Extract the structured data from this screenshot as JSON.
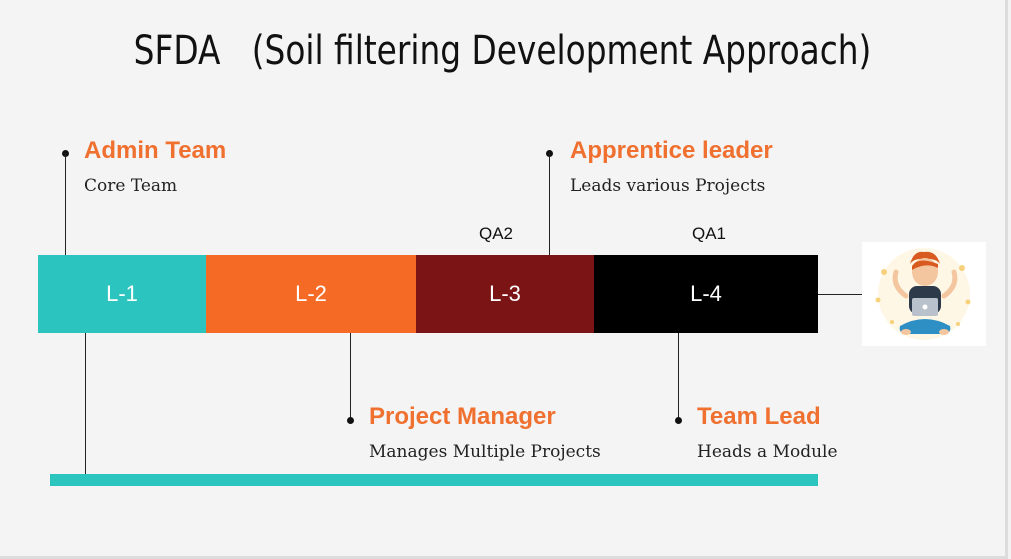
{
  "title": "SFDA   (Soil filtering Development Approach)",
  "levels": [
    {
      "label": "L-1",
      "color": "#2cc4bf"
    },
    {
      "label": "L-2",
      "color": "#f56a25"
    },
    {
      "label": "L-3",
      "color": "#7b1414"
    },
    {
      "label": "L-4",
      "color": "#000000"
    }
  ],
  "qa": {
    "qa2": "QA2",
    "qa1": "QA1"
  },
  "callouts": {
    "admin": {
      "heading": "Admin Team",
      "sub": "Core Team"
    },
    "apprentice": {
      "heading": "Apprentice leader",
      "sub": "Leads various Projects"
    },
    "pm": {
      "heading": "Project Manager",
      "sub": "Manages Multiple Projects"
    },
    "tl": {
      "heading": "Team Lead",
      "sub": "Heads a Module"
    }
  },
  "colors": {
    "accent": "#f07030",
    "teal": "#2cc4bf"
  },
  "avatar_icon": "meditating-developer-illustration"
}
